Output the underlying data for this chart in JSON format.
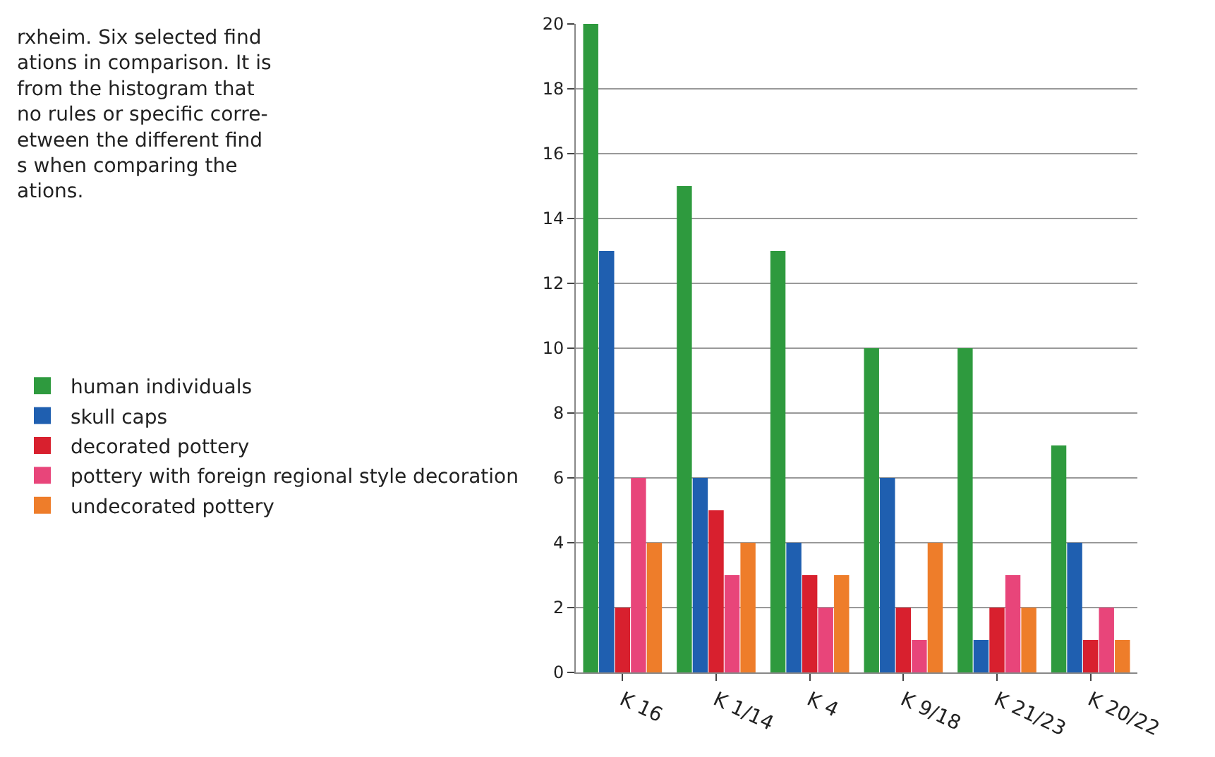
{
  "chart_data": {
    "type": "bar",
    "categories": [
      "K 16",
      "K 1/14",
      "K 4",
      "K 9/18",
      "K 21/23",
      "K 20/22"
    ],
    "series": [
      {
        "name": "human individuals",
        "color": "#2e9a3e",
        "values": [
          20,
          15,
          13,
          10,
          10,
          7
        ]
      },
      {
        "name": "skull caps",
        "color": "#1f5fb0",
        "values": [
          13,
          6,
          4,
          6,
          1,
          4
        ]
      },
      {
        "name": "decorated pottery",
        "color": "#d8202e",
        "values": [
          2,
          5,
          3,
          2,
          2,
          1
        ]
      },
      {
        "name": "pottery with foreign regional style decoration",
        "color": "#e8457a",
        "values": [
          6,
          3,
          2,
          1,
          3,
          2
        ]
      },
      {
        "name": "undecorated pottery",
        "color": "#ee7d2a",
        "values": [
          4,
          4,
          3,
          4,
          2,
          1
        ]
      }
    ],
    "ylim": [
      0,
      20
    ],
    "yticks": [
      0,
      2,
      4,
      6,
      8,
      10,
      12,
      14,
      16,
      18,
      20
    ],
    "grid": "y",
    "legend": "left",
    "annotations": [
      "rxheim. Six selected find\nations in comparison. It is\nfrom the histogram that\nno rules or specific corre-\netween the different find\ns when comparing the\nations."
    ]
  }
}
